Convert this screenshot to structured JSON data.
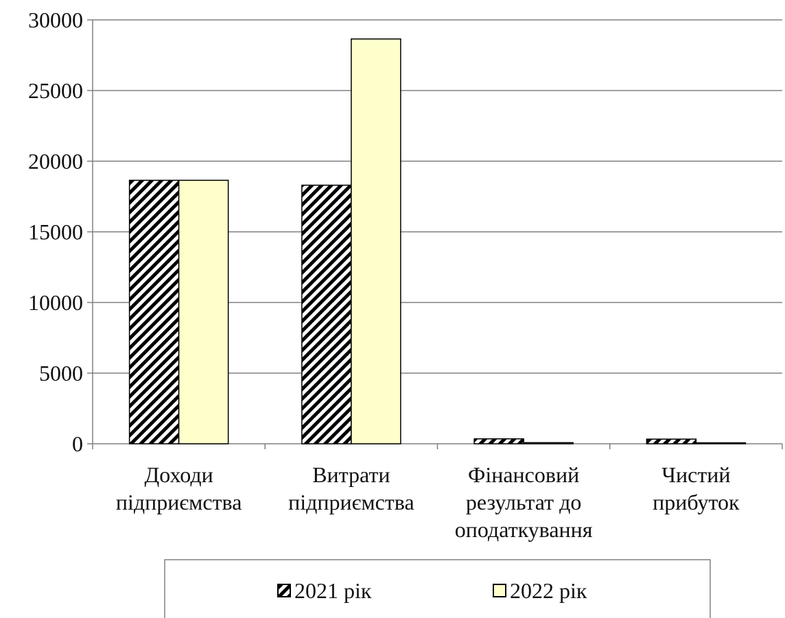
{
  "chart_data": {
    "type": "bar",
    "title": "",
    "xlabel": "",
    "ylabel": "",
    "categories": [
      [
        "Доходи",
        "підприємства"
      ],
      [
        "Витрати",
        "підприємства"
      ],
      [
        "Фінансовий",
        "результат до",
        "оподаткування"
      ],
      [
        "Чистий",
        "прибуток"
      ]
    ],
    "series": [
      {
        "name": "2021 рік",
        "values": [
          18650,
          18300,
          350,
          330
        ],
        "fill": "hatch"
      },
      {
        "name": "2022 рік",
        "values": [
          18650,
          28650,
          80,
          70
        ],
        "fill": "#ffffcc"
      }
    ],
    "ylim": [
      0,
      30000
    ],
    "yticks": [
      0,
      5000,
      10000,
      15000,
      20000,
      25000,
      30000
    ],
    "grid": true,
    "legend_position": "bottom",
    "colors": {
      "gridline": "#808080",
      "axis": "#808080",
      "bar_edge": "#000000",
      "hatch": "#000000",
      "series2": "#ffffcc"
    }
  }
}
